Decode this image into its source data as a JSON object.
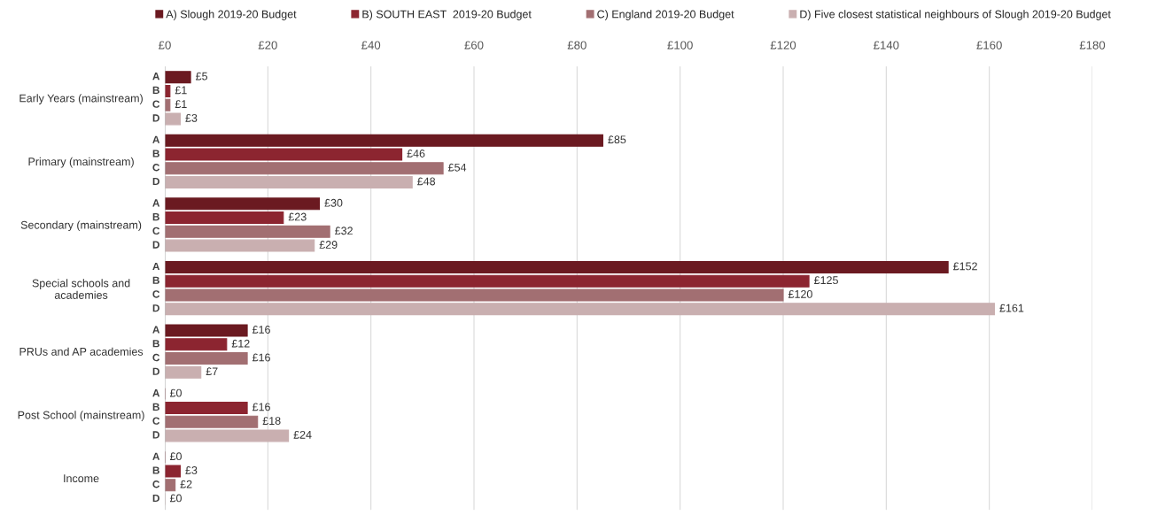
{
  "chart_data": {
    "type": "bar",
    "orientation": "horizontal",
    "categories": [
      "Early Years (mainstream)",
      "Primary (mainstream)",
      "Secondary (mainstream)",
      "Special schools and\nacademies",
      "PRUs and AP academies",
      "Post School (mainstream)",
      "Income"
    ],
    "series": [
      {
        "name": "A) Slough 2019-20 Budget",
        "color": "#6b1a21",
        "values": [
          5,
          85,
          30,
          152,
          16,
          0,
          0
        ],
        "value_labels": [
          "£5",
          "£85",
          "£30",
          "£152",
          "£16",
          "£0",
          "£0"
        ]
      },
      {
        "name": "B) SOUTH EAST  2019-20 Budget",
        "color": "#8c2530",
        "values": [
          1,
          46,
          23,
          125,
          12,
          16,
          3
        ],
        "value_labels": [
          "£1",
          "£46",
          "£23",
          "£125",
          "£12",
          "£16",
          "£3"
        ]
      },
      {
        "name": "C) England 2019-20 Budget",
        "color": "#a26f72",
        "values": [
          1,
          54,
          32,
          120,
          16,
          18,
          2
        ],
        "value_labels": [
          "£1",
          "£54",
          "£32",
          "£120",
          "£16",
          "£18",
          "£2"
        ]
      },
      {
        "name": "D) Five closest statistical neighbours of Slough 2019-20 Budget",
        "color": "#c9afb0",
        "values": [
          3,
          48,
          29,
          161,
          7,
          24,
          0
        ],
        "value_labels": [
          "£3",
          "£48",
          "£29",
          "£161",
          "£7",
          "£24",
          "£0"
        ]
      }
    ],
    "xlim": [
      0,
      180
    ],
    "xticks": [
      {
        "value": 0,
        "label": "£0"
      },
      {
        "value": 20,
        "label": "£20"
      },
      {
        "value": 40,
        "label": "£40"
      },
      {
        "value": 60,
        "label": "£60"
      },
      {
        "value": 80,
        "label": "£80"
      },
      {
        "value": 100,
        "label": "£100"
      },
      {
        "value": 120,
        "label": "£120"
      },
      {
        "value": 140,
        "label": "£140"
      },
      {
        "value": 160,
        "label": "£160"
      },
      {
        "value": 180,
        "label": "£180"
      }
    ],
    "grid": "x",
    "legend": "top",
    "annotations": [
      "A",
      "B",
      "C",
      "D",
      "A",
      "B",
      "C",
      "D",
      "A",
      "B",
      "C",
      "D",
      "A",
      "B",
      "C",
      "D",
      "A",
      "B",
      "C",
      "D",
      "A",
      "B",
      "C",
      "D",
      "A",
      "B",
      "C",
      "D"
    ]
  }
}
